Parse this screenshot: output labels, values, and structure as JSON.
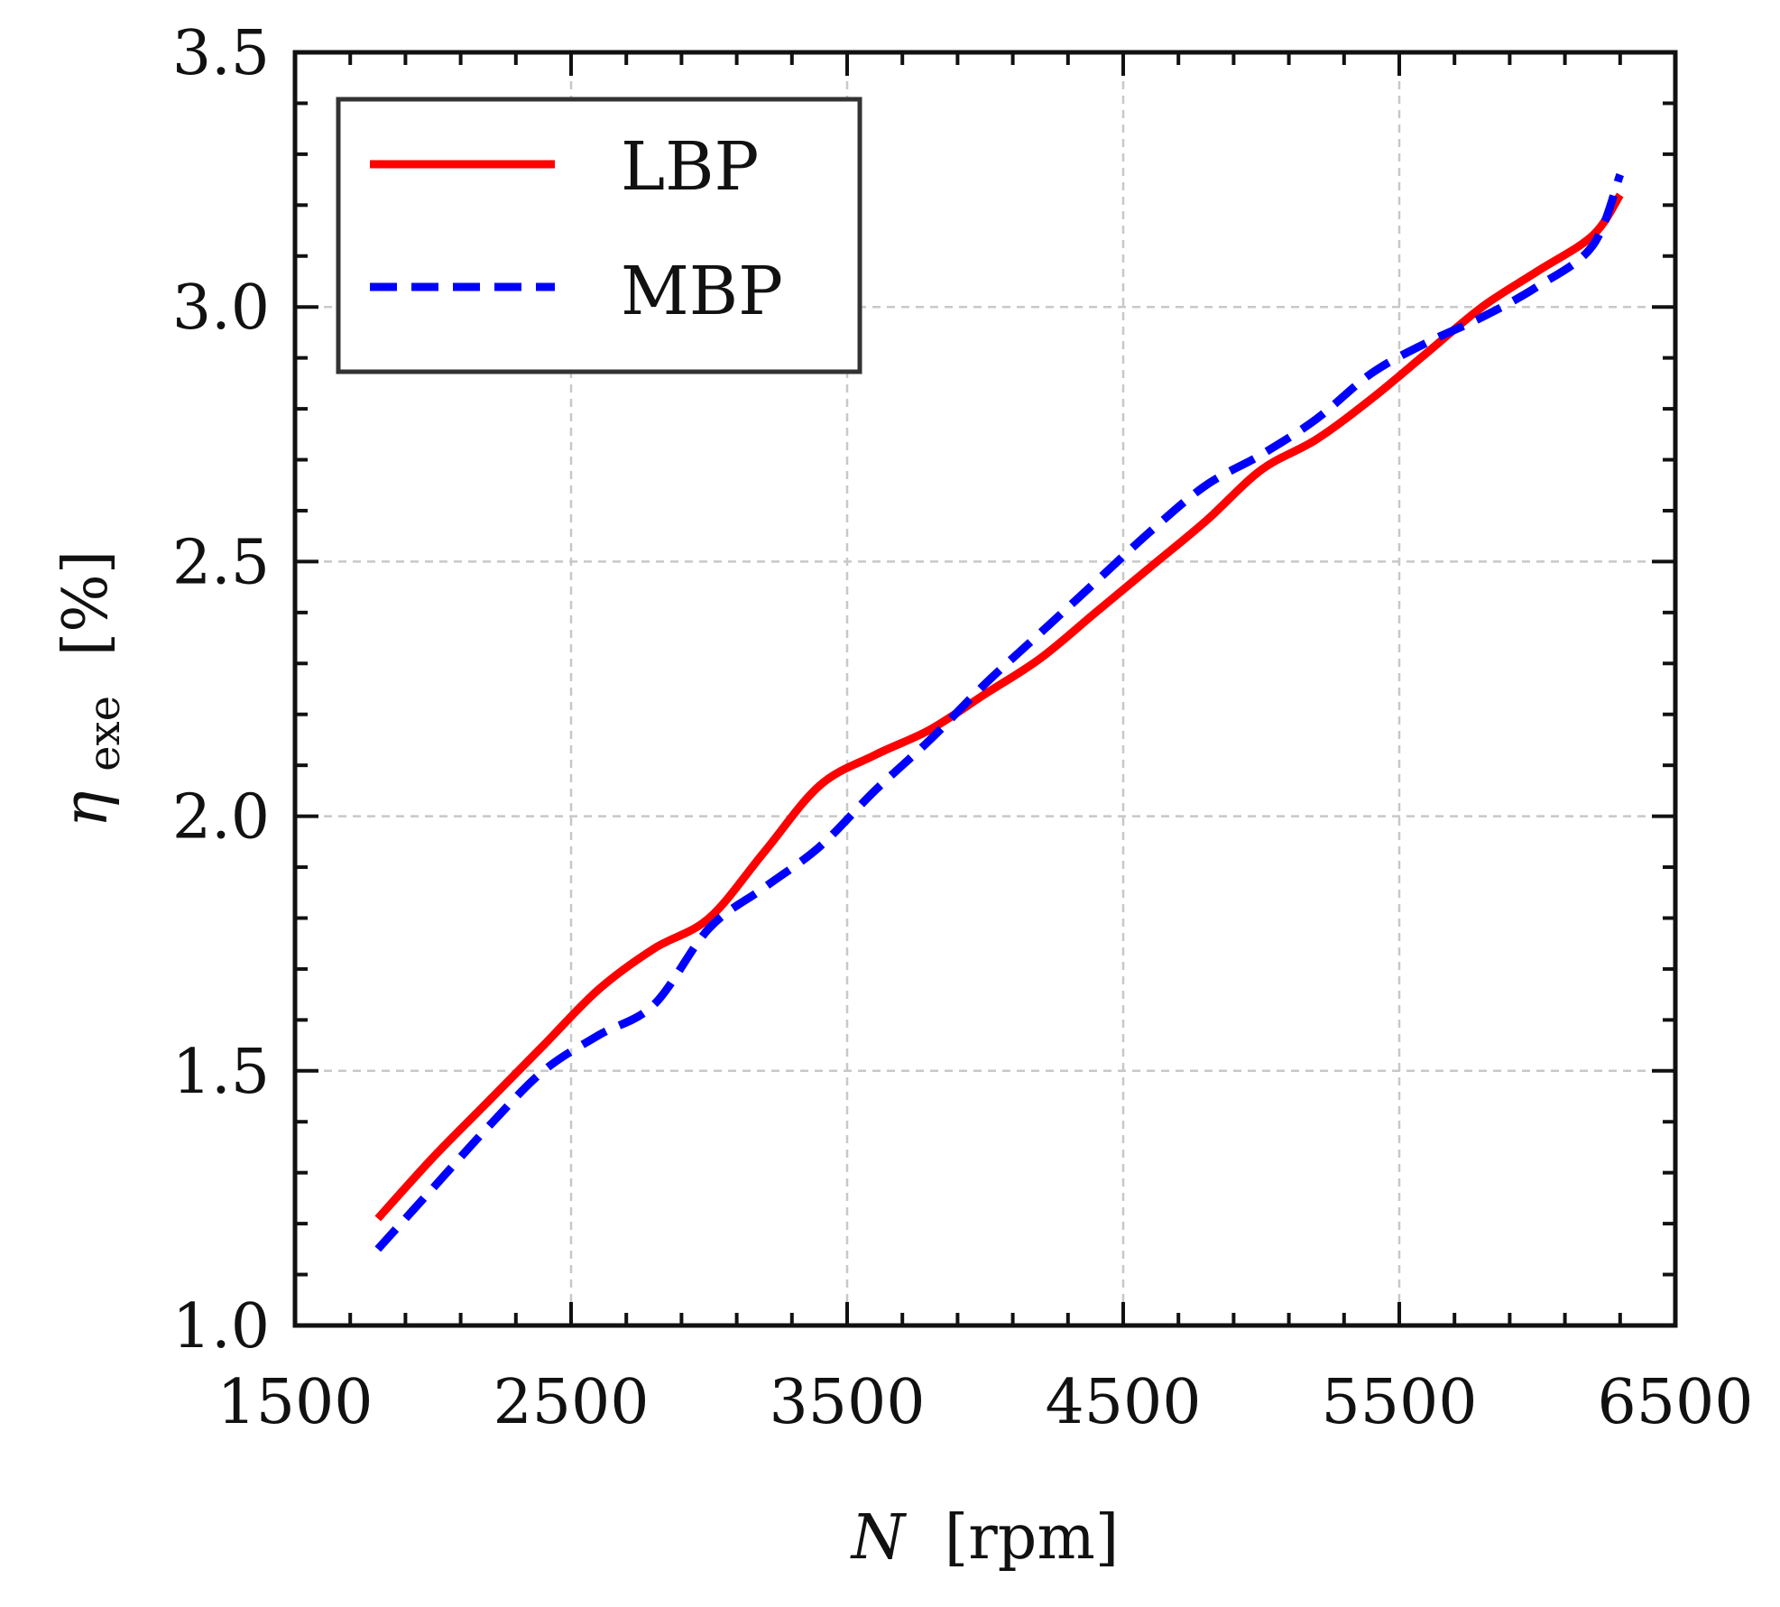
{
  "chart_data": {
    "type": "line",
    "title": "",
    "xlabel": {
      "symbol": "N",
      "unit": "[rpm]"
    },
    "ylabel": {
      "symbol": "η",
      "subscript": "exe",
      "unit": "[%]"
    },
    "xlim": [
      1500,
      6500
    ],
    "ylim": [
      1.0,
      3.5
    ],
    "xticks": [
      1500,
      2500,
      3500,
      4500,
      5500,
      6500
    ],
    "xtick_labels": [
      "1500",
      "2500",
      "3500",
      "4500",
      "5500",
      "6500"
    ],
    "yticks": [
      1.0,
      1.5,
      2.0,
      2.5,
      3.0,
      3.5
    ],
    "ytick_labels": [
      "1.0",
      "1.5",
      "2.0",
      "2.5",
      "3.0",
      "3.5"
    ],
    "grid": true,
    "legend_position": "top-left",
    "series": [
      {
        "name": "LBP",
        "color": "#ff0000",
        "style": "solid",
        "x": [
          1800,
          2000,
          2200,
          2400,
          2600,
          2800,
          3000,
          3200,
          3400,
          3600,
          3800,
          4000,
          4200,
          4400,
          4600,
          4800,
          5000,
          5200,
          5400,
          5600,
          5800,
          6000,
          6200,
          6300
        ],
        "y": [
          1.21,
          1.33,
          1.44,
          1.55,
          1.66,
          1.74,
          1.8,
          1.93,
          2.06,
          2.12,
          2.17,
          2.24,
          2.31,
          2.4,
          2.49,
          2.58,
          2.68,
          2.74,
          2.82,
          2.91,
          3.0,
          3.07,
          3.14,
          3.22
        ]
      },
      {
        "name": "MBP",
        "color": "#0000ff",
        "style": "dashed",
        "x": [
          1800,
          2000,
          2200,
          2400,
          2600,
          2800,
          3000,
          3200,
          3400,
          3600,
          3800,
          4000,
          4200,
          4400,
          4600,
          4800,
          5000,
          5200,
          5400,
          5600,
          5800,
          6000,
          6200,
          6300
        ],
        "y": [
          1.15,
          1.27,
          1.39,
          1.5,
          1.57,
          1.63,
          1.78,
          1.86,
          1.94,
          2.05,
          2.15,
          2.26,
          2.36,
          2.46,
          2.56,
          2.65,
          2.71,
          2.78,
          2.87,
          2.93,
          2.98,
          3.04,
          3.12,
          3.26
        ]
      }
    ]
  }
}
